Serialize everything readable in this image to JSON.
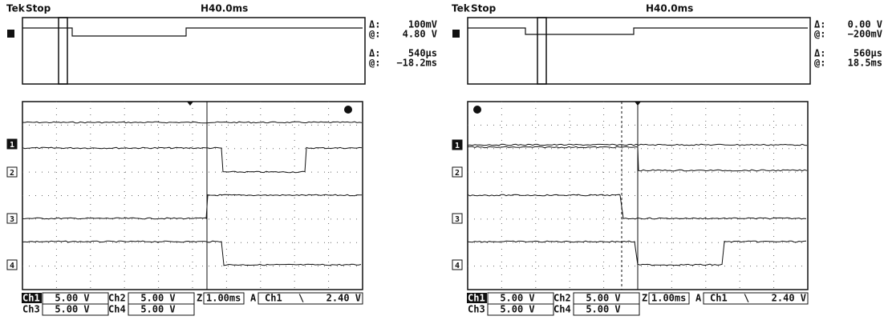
{
  "panels": [
    {
      "header": {
        "brand": "Tek",
        "status": "Stop",
        "timebase": "H40.0ms"
      },
      "cursors": [
        {
          "delta_symbol": "Δ:",
          "delta": "100mV",
          "at_symbol": "@:",
          "at": "4.80 V"
        },
        {
          "delta_symbol": "Δ:",
          "delta": "540µs",
          "at_symbol": "@:",
          "at": "−18.2ms"
        }
      ],
      "markers": [
        "1",
        "2",
        "3",
        "4"
      ],
      "channels": [
        {
          "label": "Ch1",
          "scale": "5.00 V"
        },
        {
          "label": "Ch2",
          "scale": "5.00 V"
        },
        {
          "label": "Ch3",
          "scale": "5.00 V"
        },
        {
          "label": "Ch4",
          "scale": "5.00 V"
        }
      ],
      "horizontal": {
        "prefix": "Z",
        "value": "1.00ms"
      },
      "trigger": {
        "mode": "A",
        "source": "Ch1",
        "slope": "\\",
        "level": "2.40 V"
      }
    },
    {
      "header": {
        "brand": "Tek",
        "status": "Stop",
        "timebase": "H40.0ms"
      },
      "cursors": [
        {
          "delta_symbol": "Δ:",
          "delta": "0.00 V",
          "at_symbol": "@:",
          "at": "−200mV"
        },
        {
          "delta_symbol": "Δ:",
          "delta": "560µs",
          "at_symbol": "@:",
          "at": "18.5ms"
        }
      ],
      "markers": [
        "1",
        "2",
        "3",
        "4"
      ],
      "channels": [
        {
          "label": "Ch1",
          "scale": "5.00 V"
        },
        {
          "label": "Ch2",
          "scale": "5.00 V"
        },
        {
          "label": "Ch3",
          "scale": "5.00 V"
        },
        {
          "label": "Ch4",
          "scale": "5.00 V"
        }
      ],
      "horizontal": {
        "prefix": "Z",
        "value": "1.00ms"
      },
      "trigger": {
        "mode": "A",
        "source": "Ch1",
        "slope": "\\",
        "level": "2.40 V"
      }
    }
  ]
}
